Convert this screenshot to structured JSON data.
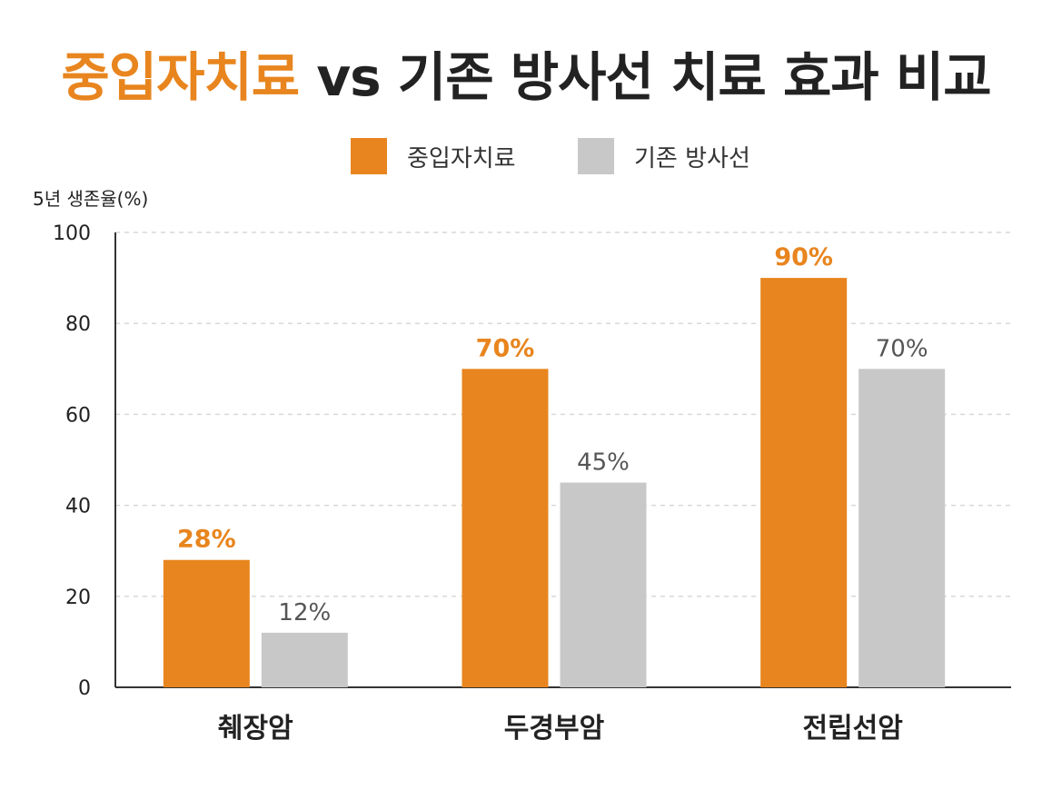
{
  "colors": {
    "accent": "#E8851E",
    "gray": "#C8C8C8",
    "grid": "#D8D8D8",
    "axis": "#333333",
    "text": "#222222",
    "value_b": "#555555"
  },
  "chart_data": {
    "type": "bar",
    "title_accent": "중입자치료",
    "title_rest": " vs 기존 방사선 치료 효과 비교",
    "ylabel": "5년 생존율(%)",
    "xlabel": "",
    "ylim": [
      0,
      100
    ],
    "yticks": [
      0,
      20,
      40,
      60,
      80,
      100
    ],
    "grid": true,
    "legend_position": "top-center",
    "categories": [
      "췌장암",
      "두경부암",
      "전립선암"
    ],
    "series": [
      {
        "name": "중입자치료",
        "values": [
          28,
          70,
          90
        ],
        "labels": [
          "28%",
          "70%",
          "90%"
        ],
        "color": "#E8851E"
      },
      {
        "name": "기존 방사선",
        "values": [
          12,
          45,
          70
        ],
        "labels": [
          "12%",
          "45%",
          "70%"
        ],
        "color": "#C8C8C8"
      }
    ]
  }
}
